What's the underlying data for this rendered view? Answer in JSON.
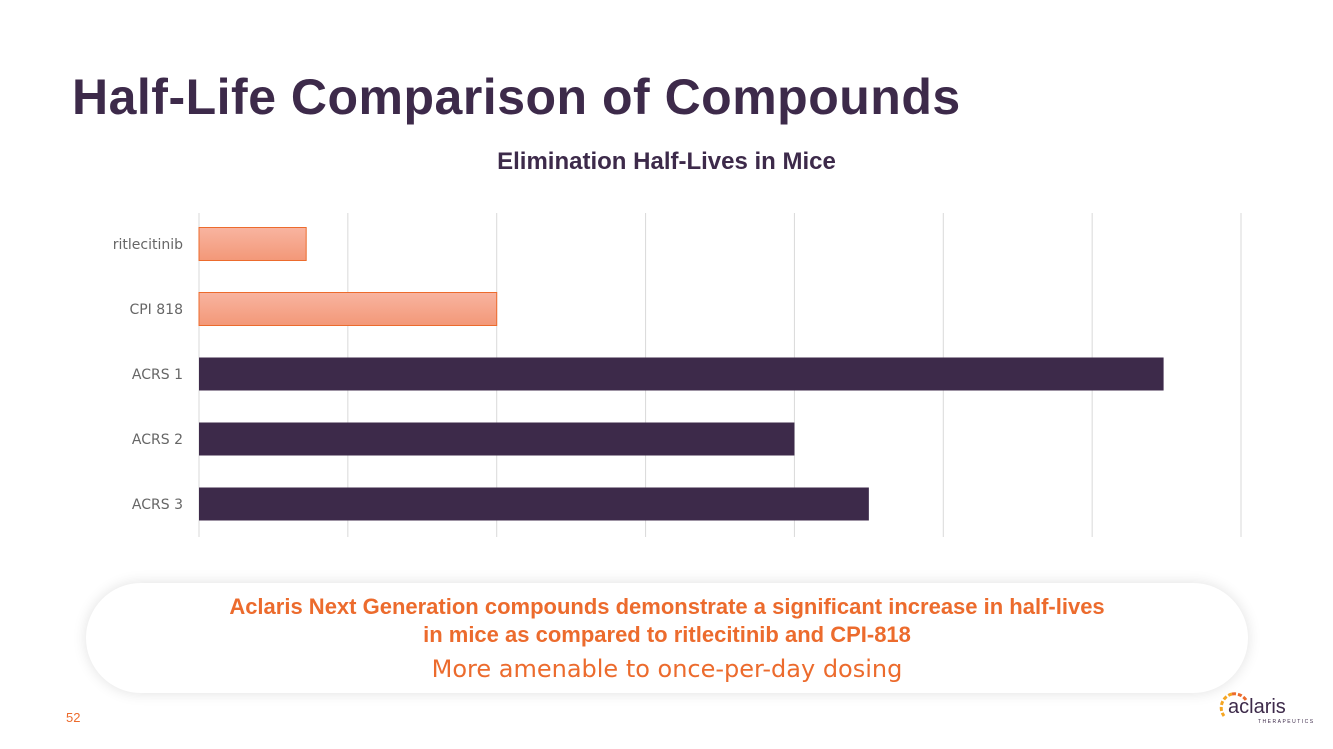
{
  "page": {
    "title": "Half-Life Comparison of Compounds",
    "page_number": "52"
  },
  "callout": {
    "line1": "Aclaris Next Generation compounds demonstrate a significant increase in half-lives",
    "line2": "in mice as compared to ritlecitinib and CPI-818",
    "line3": "More amenable to once-per-day dosing"
  },
  "logo": {
    "name": "aclaris",
    "sub": "THERAPEUTICS"
  },
  "colors": {
    "primary": "#3d2a4a",
    "accent": "#ec6b2d",
    "competitor_fill": "#f7a58a"
  },
  "chart_data": {
    "type": "bar",
    "orientation": "horizontal",
    "title": "Elimination Half-Lives in Mice",
    "categories": [
      "ritlecitinib",
      "CPI 818",
      "ACRS 1",
      "ACRS 2",
      "ACRS 3"
    ],
    "values": [
      0.72,
      2.0,
      6.48,
      4.0,
      4.5
    ],
    "groups": [
      "competitor",
      "competitor",
      "aclaris",
      "aclaris",
      "aclaris"
    ],
    "xlabel": "",
    "ylabel": "",
    "xlim": [
      0,
      7
    ],
    "grid": true,
    "note": "No x-axis tick labels shown; values estimated in gridline units"
  }
}
